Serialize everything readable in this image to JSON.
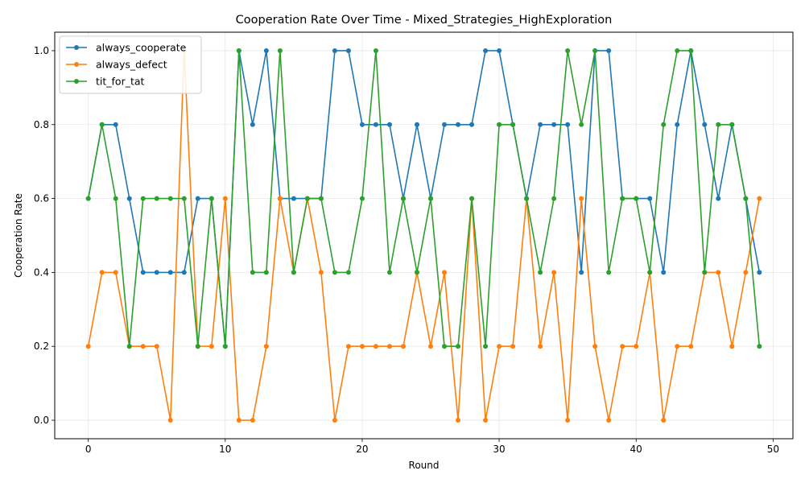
{
  "chart_data": {
    "type": "line",
    "title": "Cooperation Rate Over Time - Mixed_Strategies_HighExploration",
    "xlabel": "Round",
    "ylabel": "Cooperation Rate",
    "xlim": [
      -2.45,
      51.45
    ],
    "ylim": [
      -0.05,
      1.05
    ],
    "x_ticks": [
      0,
      10,
      20,
      30,
      40,
      50
    ],
    "x_tick_labels": [
      "0",
      "10",
      "20",
      "30",
      "40",
      "50"
    ],
    "y_ticks": [
      0.0,
      0.2,
      0.4,
      0.6,
      0.8,
      1.0
    ],
    "y_tick_labels": [
      "0.0",
      "0.2",
      "0.4",
      "0.6",
      "0.8",
      "1.0"
    ],
    "grid": true,
    "legend_position": "top-left",
    "x": [
      0,
      1,
      2,
      3,
      4,
      5,
      6,
      7,
      8,
      9,
      10,
      11,
      12,
      13,
      14,
      15,
      16,
      17,
      18,
      19,
      20,
      21,
      22,
      23,
      24,
      25,
      26,
      27,
      28,
      29,
      30,
      31,
      32,
      33,
      34,
      35,
      36,
      37,
      38,
      39,
      40,
      41,
      42,
      43,
      44,
      45,
      46,
      47,
      48,
      49
    ],
    "series": [
      {
        "name": "always_cooperate",
        "color": "#1f77b4",
        "values": [
          0.6,
          0.8,
          0.8,
          0.6,
          0.4,
          0.4,
          0.4,
          0.4,
          0.6,
          0.6,
          0.2,
          1.0,
          0.8,
          1.0,
          0.6,
          0.6,
          0.6,
          0.6,
          1.0,
          1.0,
          0.8,
          0.8,
          0.8,
          0.6,
          0.8,
          0.6,
          0.8,
          0.8,
          0.8,
          1.0,
          1.0,
          0.8,
          0.6,
          0.8,
          0.8,
          0.8,
          0.4,
          1.0,
          1.0,
          0.6,
          0.6,
          0.6,
          0.4,
          0.8,
          1.0,
          0.8,
          0.6,
          0.8,
          0.6,
          0.4
        ]
      },
      {
        "name": "always_defect",
        "color": "#ff7f0e",
        "values": [
          0.2,
          0.4,
          0.4,
          0.2,
          0.2,
          0.2,
          0.0,
          1.0,
          0.2,
          0.2,
          0.6,
          0.0,
          0.0,
          0.2,
          0.6,
          0.4,
          0.6,
          0.4,
          0.0,
          0.2,
          0.2,
          0.2,
          0.2,
          0.2,
          0.4,
          0.2,
          0.4,
          0.0,
          0.6,
          0.0,
          0.2,
          0.2,
          0.6,
          0.2,
          0.4,
          0.0,
          0.6,
          0.2,
          0.0,
          0.2,
          0.2,
          0.4,
          0.0,
          0.2,
          0.2,
          0.4,
          0.4,
          0.2,
          0.4,
          0.6
        ]
      },
      {
        "name": "tit_for_tat",
        "color": "#2ca02c",
        "values": [
          0.6,
          0.8,
          0.6,
          0.2,
          0.6,
          0.6,
          0.6,
          0.6,
          0.2,
          0.6,
          0.2,
          1.0,
          0.4,
          0.4,
          1.0,
          0.4,
          0.6,
          0.6,
          0.4,
          0.4,
          0.6,
          1.0,
          0.4,
          0.6,
          0.4,
          0.6,
          0.2,
          0.2,
          0.6,
          0.2,
          0.8,
          0.8,
          0.6,
          0.4,
          0.6,
          1.0,
          0.8,
          1.0,
          0.4,
          0.6,
          0.6,
          0.4,
          0.8,
          1.0,
          1.0,
          0.4,
          0.8,
          0.8,
          0.6,
          0.2
        ]
      }
    ]
  }
}
